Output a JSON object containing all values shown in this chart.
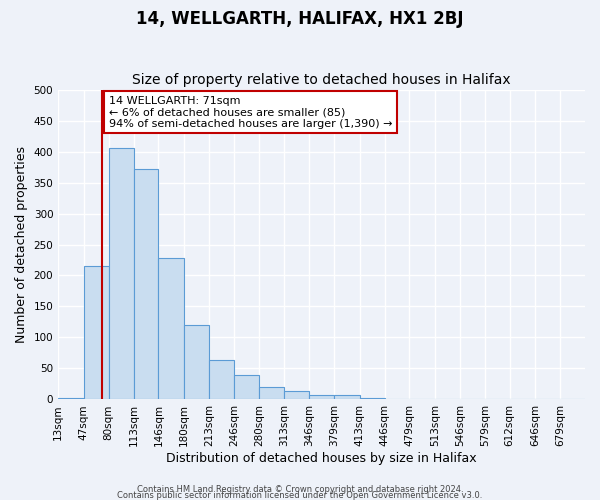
{
  "title_line1": "14, WELLGARTH, HALIFAX, HX1 2BJ",
  "title_line2": "Size of property relative to detached houses in Halifax",
  "xlabel": "Distribution of detached houses by size in Halifax",
  "ylabel": "Number of detached properties",
  "bin_labels": [
    "13sqm",
    "47sqm",
    "80sqm",
    "113sqm",
    "146sqm",
    "180sqm",
    "213sqm",
    "246sqm",
    "280sqm",
    "313sqm",
    "346sqm",
    "379sqm",
    "413sqm",
    "446sqm",
    "479sqm",
    "513sqm",
    "546sqm",
    "579sqm",
    "612sqm",
    "646sqm",
    "679sqm"
  ],
  "bar_heights": [
    2,
    215,
    405,
    372,
    228,
    120,
    63,
    40,
    20,
    14,
    7,
    7,
    3,
    1,
    1,
    0,
    0,
    1,
    0,
    0,
    1
  ],
  "bar_color": "#c9ddf0",
  "bar_edge_color": "#5b9bd5",
  "bin_edges_sqm": [
    13,
    47,
    80,
    113,
    146,
    180,
    213,
    246,
    280,
    313,
    346,
    379,
    413,
    446,
    479,
    513,
    546,
    579,
    612,
    646,
    679,
    712
  ],
  "annotation_line1": "14 WELLGARTH: 71sqm",
  "annotation_line2": "← 6% of detached houses are smaller (85)",
  "annotation_line3": "94% of semi-detached houses are larger (1,390) →",
  "annotation_box_edge": "#c00000",
  "annotation_box_bg": "#ffffff",
  "vline_color": "#c00000",
  "vline_x_sqm": 71,
  "ylim": [
    0,
    500
  ],
  "footnote1": "Contains HM Land Registry data © Crown copyright and database right 2024.",
  "footnote2": "Contains public sector information licensed under the Open Government Licence v3.0.",
  "bg_color": "#eef2f9",
  "grid_color": "#ffffff",
  "title_fontsize": 12,
  "subtitle_fontsize": 10,
  "axis_label_fontsize": 9,
  "tick_fontsize": 7.5,
  "annot_fontsize": 8
}
